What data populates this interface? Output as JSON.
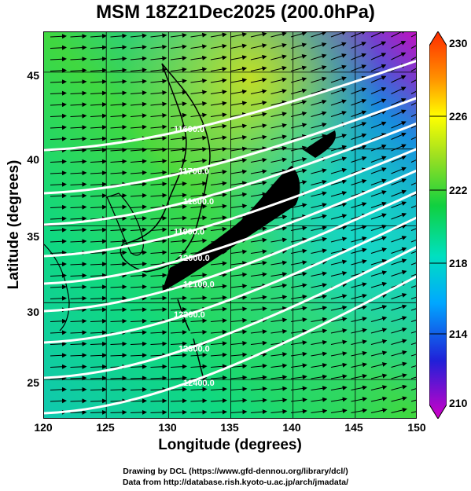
{
  "title": "MSM 18Z21Dec2025 (200.0hPa)",
  "x_axis": {
    "label": "Longitude (degrees)",
    "ticks": [
      "120",
      "125",
      "130",
      "135",
      "140",
      "145",
      "150"
    ],
    "range": [
      120,
      150
    ]
  },
  "y_axis": {
    "label": "Latitude  (degrees)",
    "ticks": [
      "45",
      "40",
      "35",
      "30",
      "25"
    ],
    "range": [
      22.4,
      47.6
    ]
  },
  "colorbar": {
    "min": 210,
    "max": 230,
    "labels": [
      "230",
      "226",
      "222",
      "218",
      "214",
      "210"
    ],
    "colors": [
      "#d100c8",
      "#2020d8",
      "#00a8ff",
      "#00e0c0",
      "#10d040",
      "#a0e020",
      "#ffff00",
      "#ff9000",
      "#ff2a00"
    ]
  },
  "contours": [
    {
      "value": "11600.0"
    },
    {
      "value": "11700.0"
    },
    {
      "value": "11800.0"
    },
    {
      "value": "11900.0"
    },
    {
      "value": "12000.0"
    },
    {
      "value": "12100.0"
    },
    {
      "value": "12200.0"
    },
    {
      "value": "12300.0"
    },
    {
      "value": "12400.0"
    }
  ],
  "credits": [
    "Drawing by DCL (https://www.gfd-dennou.org/library/dcl/)",
    "Data from http://database.rish.kyoto-u.ac.jp/arch/jmadata/"
  ]
}
